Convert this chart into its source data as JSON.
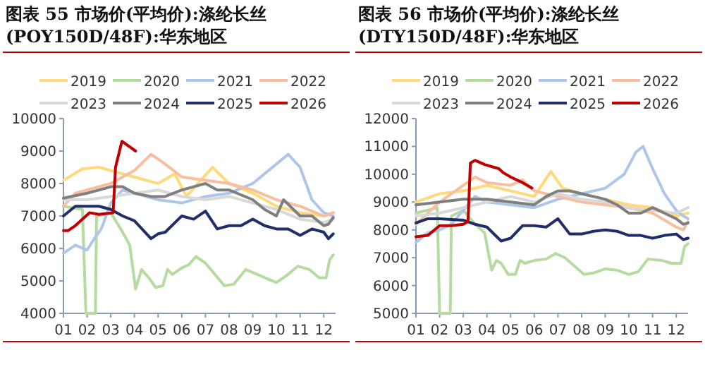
{
  "chart_data": [
    {
      "type": "line",
      "title": "图表 55 市场价(平均价):涤纶长丝(POY150D/48F):华东地区",
      "legend": "top",
      "xlim": [
        1,
        12.5
      ],
      "ylim": [
        4000,
        10000
      ],
      "yticks": [
        4000,
        5000,
        6000,
        7000,
        8000,
        9000,
        10000
      ],
      "xticks": [
        {
          "value": 1,
          "label": "01"
        },
        {
          "value": 2,
          "label": "02"
        },
        {
          "value": 3,
          "label": "03"
        },
        {
          "value": 4,
          "label": "04"
        },
        {
          "value": 5,
          "label": "05"
        },
        {
          "value": 6,
          "label": "06"
        },
        {
          "value": 7,
          "label": "07"
        },
        {
          "value": 8,
          "label": "08"
        },
        {
          "value": 9,
          "label": "09"
        },
        {
          "value": 10,
          "label": "10"
        },
        {
          "value": 11,
          "label": "11"
        },
        {
          "value": 12,
          "label": "12"
        }
      ],
      "series": [
        {
          "name": "2019",
          "color": "#ffd97a",
          "x": [
            1,
            1.8,
            2.5,
            3,
            4,
            5,
            5.7,
            6.2,
            6.8,
            7.3,
            8,
            9,
            10,
            11,
            12,
            12.4
          ],
          "values": [
            8100,
            8450,
            8500,
            8400,
            8200,
            8000,
            8300,
            7600,
            8100,
            8500,
            8000,
            7700,
            7300,
            7100,
            7000,
            7100
          ]
        },
        {
          "name": "2020",
          "color": "#b5dba0",
          "x": [
            1,
            1.8,
            1.95,
            2.35,
            2.4,
            3,
            3.5,
            3.8,
            4.05,
            4.3,
            4.6,
            4.9,
            5.2,
            5.4,
            5.6,
            6,
            6.3,
            6.6,
            7,
            7.4,
            7.8,
            8.2,
            8.7,
            9.2,
            9.5,
            10,
            10.4,
            10.9,
            11.4,
            11.8,
            12.1,
            12.25,
            12.4
          ],
          "values": [
            7300,
            7200,
            4000,
            4000,
            7000,
            7100,
            6500,
            6100,
            4750,
            5350,
            5100,
            4800,
            4850,
            5350,
            5200,
            5400,
            5500,
            5750,
            5550,
            5200,
            4850,
            4900,
            5350,
            5200,
            5100,
            4950,
            5150,
            5450,
            5350,
            5100,
            5100,
            5650,
            5800
          ]
        },
        {
          "name": "2021",
          "color": "#aec6ea",
          "x": [
            1,
            1.5,
            2,
            2.3,
            2.6,
            3,
            3.5,
            4,
            5,
            6,
            7,
            8,
            9,
            10,
            10.5,
            11,
            11.5,
            12,
            12.4
          ],
          "values": [
            5850,
            6100,
            5950,
            6300,
            6600,
            7400,
            7800,
            7700,
            7500,
            7400,
            7600,
            7700,
            8000,
            8600,
            8900,
            8500,
            7500,
            7100,
            7000
          ]
        },
        {
          "name": "2022",
          "color": "#f7bf9f",
          "x": [
            1,
            1.5,
            2,
            3,
            4,
            4.7,
            5.3,
            6,
            7,
            8,
            9,
            10,
            11,
            12,
            12.4
          ],
          "values": [
            7300,
            7700,
            7800,
            8000,
            8400,
            8900,
            8600,
            8200,
            8100,
            8000,
            7800,
            7500,
            7300,
            7000,
            7100
          ]
        },
        {
          "name": "2023",
          "color": "#d9d9d9",
          "x": [
            1,
            2,
            3,
            4,
            5,
            6,
            7,
            8,
            9,
            10,
            11,
            12,
            12.4
          ],
          "values": [
            7500,
            7500,
            7600,
            7700,
            7800,
            7600,
            7500,
            7600,
            7400,
            7200,
            6900,
            6800,
            6900
          ]
        },
        {
          "name": "2024",
          "color": "#7f7f7f",
          "x": [
            1,
            2,
            3,
            3.5,
            4,
            4.7,
            5.3,
            6,
            6.5,
            7,
            7.5,
            8,
            9,
            9.5,
            10,
            10.3,
            11,
            11.5,
            12,
            12.2,
            12.4
          ],
          "values": [
            7550,
            7700,
            7900,
            7900,
            7700,
            7600,
            7600,
            7800,
            7900,
            8000,
            7800,
            7800,
            7500,
            7200,
            7000,
            7500,
            7000,
            7000,
            6700,
            6750,
            6950
          ]
        },
        {
          "name": "2025",
          "color": "#1f2d6b",
          "x": [
            1,
            1.5,
            2,
            2.5,
            3,
            3.5,
            4,
            4.7,
            5,
            5.3,
            6,
            6.5,
            7,
            7.5,
            8,
            8.5,
            9,
            9.5,
            10,
            10.5,
            11,
            11.5,
            12,
            12.2,
            12.4
          ],
          "values": [
            7000,
            7300,
            7300,
            7300,
            7200,
            7000,
            6850,
            6300,
            6450,
            6500,
            7000,
            6900,
            7150,
            6600,
            6700,
            6700,
            6900,
            6700,
            6600,
            6600,
            6400,
            6600,
            6500,
            6300,
            6450
          ]
        },
        {
          "name": "2026",
          "color": "#c00000",
          "x": [
            1,
            1.2,
            1.5,
            2.1,
            2.5,
            3.1,
            3.2,
            3.47,
            4.05
          ],
          "values": [
            6550,
            6550,
            6700,
            7100,
            7050,
            7100,
            8500,
            9300,
            9000
          ]
        }
      ]
    },
    {
      "type": "line",
      "title": "图表 56 市场价(平均价):涤纶长丝(DTY150D/48F):华东地区",
      "legend": "top",
      "xlim": [
        1,
        12.5
      ],
      "ylim": [
        5000,
        12000
      ],
      "yticks": [
        5000,
        6000,
        7000,
        8000,
        9000,
        10000,
        11000,
        12000
      ],
      "xticks": [
        {
          "value": 1,
          "label": "01"
        },
        {
          "value": 2,
          "label": "02"
        },
        {
          "value": 3,
          "label": "03"
        },
        {
          "value": 4,
          "label": "04"
        },
        {
          "value": 5,
          "label": "05"
        },
        {
          "value": 6,
          "label": "06"
        },
        {
          "value": 7,
          "label": "07"
        },
        {
          "value": 8,
          "label": "08"
        },
        {
          "value": 9,
          "label": "09"
        },
        {
          "value": 10,
          "label": "10"
        },
        {
          "value": 11,
          "label": "11"
        },
        {
          "value": 12,
          "label": "12"
        }
      ],
      "series": [
        {
          "name": "2019",
          "color": "#ffd97a",
          "x": [
            1,
            2,
            3,
            4,
            5,
            6,
            6.7,
            7.2,
            8,
            9,
            10,
            11,
            12,
            12.5
          ],
          "values": [
            9000,
            9300,
            9400,
            9600,
            9400,
            9200,
            10100,
            9500,
            9300,
            9100,
            8900,
            8800,
            8500,
            8600
          ]
        },
        {
          "name": "2020",
          "color": "#b5dba0",
          "x": [
            1,
            1.9,
            2,
            2.45,
            2.5,
            3,
            3.5,
            3.9,
            4.2,
            4.4,
            4.6,
            4.9,
            5.2,
            5.4,
            5.6,
            6,
            6.5,
            6.9,
            7.3,
            7.7,
            8.1,
            8.5,
            9,
            9.5,
            10,
            10.4,
            10.8,
            11.4,
            11.8,
            12.2,
            12.35,
            12.5
          ],
          "values": [
            8600,
            8800,
            5000,
            5000,
            8500,
            8700,
            8200,
            7900,
            6550,
            6900,
            6800,
            6400,
            6400,
            6900,
            6800,
            6900,
            6950,
            7150,
            7000,
            6700,
            6400,
            6450,
            6600,
            6550,
            6400,
            6500,
            6950,
            6900,
            6800,
            6800,
            7400,
            7500
          ]
        },
        {
          "name": "2021",
          "color": "#aec6ea",
          "x": [
            1,
            1.5,
            2,
            2.5,
            3,
            3.5,
            4,
            5,
            6,
            7,
            8,
            9,
            9.8,
            10.3,
            10.6,
            11,
            11.5,
            12,
            12.3,
            12.5
          ],
          "values": [
            7550,
            7900,
            8000,
            8200,
            8700,
            9200,
            9000,
            8900,
            8800,
            9100,
            9300,
            9500,
            10000,
            10800,
            11000,
            10200,
            9300,
            8700,
            8500,
            8400
          ]
        },
        {
          "name": "2022",
          "color": "#f7bf9f",
          "x": [
            1,
            2,
            3,
            3.5,
            4,
            5,
            5.5,
            6,
            7,
            8,
            9,
            10,
            11,
            12,
            12.3,
            12.5
          ],
          "values": [
            8200,
            9000,
            9600,
            9900,
            9700,
            9600,
            9800,
            9400,
            9200,
            9000,
            8900,
            8800,
            8600,
            8100,
            8000,
            8300
          ]
        },
        {
          "name": "2023",
          "color": "#d9d9d9",
          "x": [
            1,
            2,
            3,
            4,
            5,
            6,
            7,
            8,
            9,
            10,
            11,
            12,
            12.5
          ],
          "values": [
            8500,
            8600,
            8800,
            9000,
            9200,
            9000,
            9300,
            9100,
            9000,
            8800,
            8700,
            8600,
            8800
          ]
        },
        {
          "name": "2024",
          "color": "#7f7f7f",
          "x": [
            1,
            2,
            3,
            4,
            5,
            6,
            6.5,
            7,
            7.5,
            8,
            9,
            9.5,
            10,
            10.5,
            11,
            11.5,
            12,
            12.3,
            12.5
          ],
          "values": [
            8900,
            9000,
            9100,
            9100,
            9000,
            8900,
            9200,
            9400,
            9400,
            9300,
            9100,
            8900,
            8600,
            8600,
            8800,
            8600,
            8400,
            8200,
            8250
          ]
        },
        {
          "name": "2025",
          "color": "#1f2d6b",
          "x": [
            1,
            1.5,
            2,
            3,
            3.5,
            4,
            4.6,
            5,
            5.5,
            6,
            6.5,
            7,
            7.5,
            8,
            8.5,
            9,
            9.5,
            10,
            10.5,
            11,
            11.5,
            12,
            12.3,
            12.5
          ],
          "values": [
            8250,
            8400,
            8400,
            8350,
            8200,
            8100,
            7600,
            7700,
            8150,
            8150,
            8100,
            8400,
            7850,
            7850,
            7950,
            8000,
            7950,
            7800,
            7800,
            7700,
            7800,
            7850,
            7650,
            7700
          ]
        },
        {
          "name": "2026",
          "color": "#c00000",
          "x": [
            1,
            1.5,
            2,
            2.5,
            3,
            3.2,
            3.3,
            3.5,
            3.9,
            4.5,
            4.7,
            5,
            5.5,
            5.9
          ],
          "values": [
            7750,
            7800,
            8150,
            8150,
            8200,
            8300,
            10400,
            10500,
            10350,
            10200,
            10050,
            9900,
            9700,
            9500
          ]
        }
      ]
    }
  ]
}
